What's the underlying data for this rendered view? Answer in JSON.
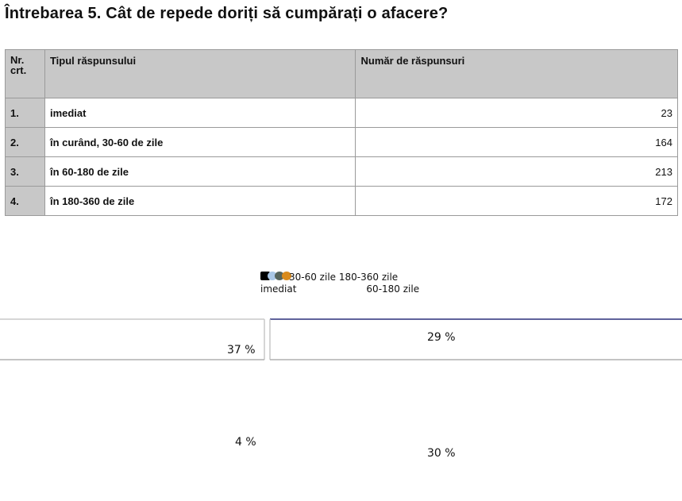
{
  "title": "Întrebarea 5. Cât de repede doriți să cumpărați o afacere?",
  "table": {
    "headers": [
      "Nr. crt.",
      "Tipul răspunsului",
      "Număr de răspunsuri"
    ],
    "rows": [
      {
        "nr": "1.",
        "type": "imediat",
        "count": "23"
      },
      {
        "nr": "2.",
        "type": "în curând, 30-60 de zile",
        "count": "164"
      },
      {
        "nr": "3.",
        "type": "în 60-180 de zile",
        "count": "213"
      },
      {
        "nr": "4.",
        "type": "în 180-360 de zile",
        "count": "172"
      }
    ]
  },
  "chart_data": {
    "type": "pie",
    "legend": {
      "entries": [
        "imediat",
        "30-60 zile",
        "60-180 zile",
        "180-360 zile"
      ],
      "colors": [
        "#000000",
        "#a9c7e6",
        "#55645c",
        "#d98b1d"
      ],
      "placement": "top"
    },
    "slices": [
      {
        "label": "imediat",
        "value": 4,
        "text": "4 %"
      },
      {
        "label": "30-60 zile",
        "value": 29,
        "text": "29 %"
      },
      {
        "label": "60-180 zile",
        "value": 37,
        "text": "37 %"
      },
      {
        "label": "180-360 zile",
        "value": 30,
        "text": "30 %"
      }
    ]
  }
}
